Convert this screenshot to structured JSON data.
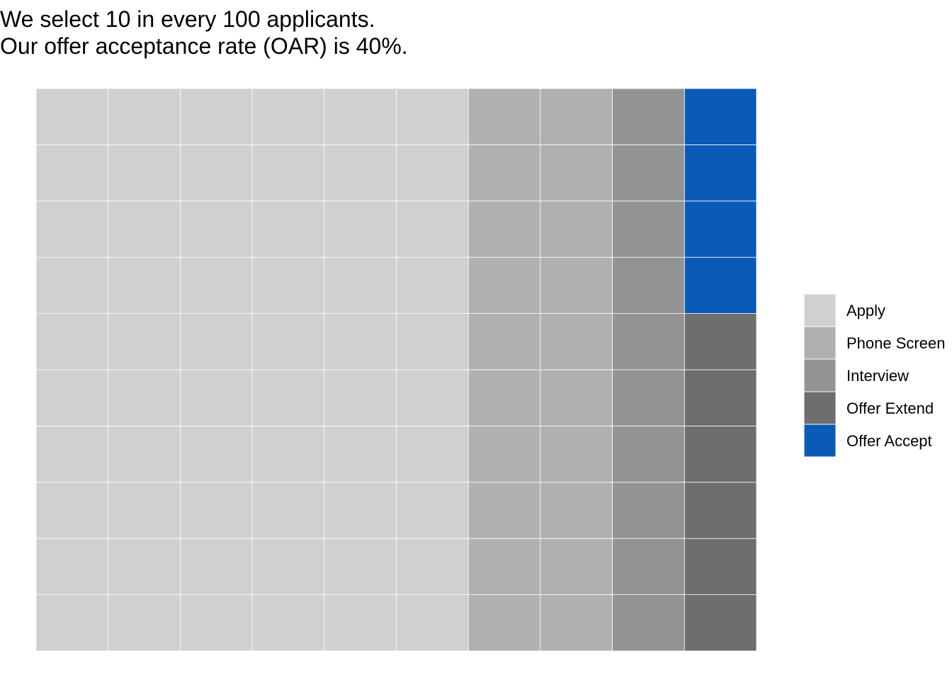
{
  "title_lines": [
    "We select 10 in every 100 applicants.",
    "Our offer acceptance rate (OAR) is 40%."
  ],
  "chart_data": {
    "type": "waffle",
    "rows": 10,
    "columns": 10,
    "total": 100,
    "fill_order": "column-wise, left to right, bottom to top",
    "categories": [
      "Apply",
      "Phone Screen",
      "Interview",
      "Offer Extend",
      "Offer Accept"
    ],
    "values": [
      60,
      20,
      10,
      6,
      4
    ],
    "colors": [
      "#d0d0d0",
      "#b0b0b0",
      "#939393",
      "#6e6e6e",
      "#0a5bb5"
    ],
    "legend": {
      "position": "right",
      "entries": [
        "Apply",
        "Phone Screen",
        "Interview",
        "Offer Extend",
        "Offer Accept"
      ]
    },
    "grid": false,
    "axes": false
  }
}
